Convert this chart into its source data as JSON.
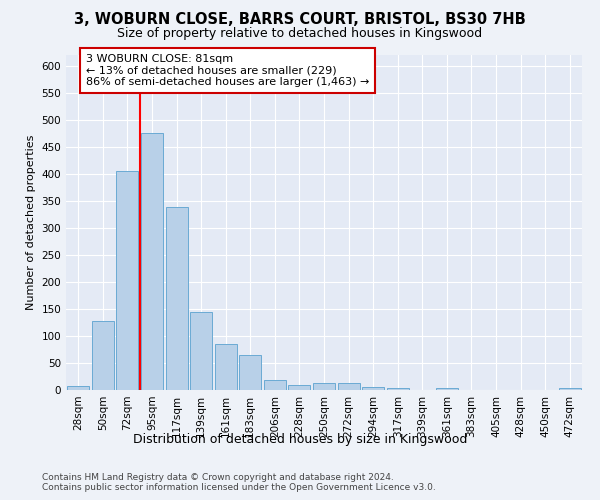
{
  "title1": "3, WOBURN CLOSE, BARRS COURT, BRISTOL, BS30 7HB",
  "title2": "Size of property relative to detached houses in Kingswood",
  "xlabel": "Distribution of detached houses by size in Kingswood",
  "ylabel": "Number of detached properties",
  "footer": "Contains HM Land Registry data © Crown copyright and database right 2024.\nContains public sector information licensed under the Open Government Licence v3.0.",
  "bin_labels": [
    "28sqm",
    "50sqm",
    "72sqm",
    "95sqm",
    "117sqm",
    "139sqm",
    "161sqm",
    "183sqm",
    "206sqm",
    "228sqm",
    "250sqm",
    "272sqm",
    "294sqm",
    "317sqm",
    "339sqm",
    "361sqm",
    "383sqm",
    "405sqm",
    "428sqm",
    "450sqm",
    "472sqm"
  ],
  "bar_values": [
    8,
    127,
    405,
    475,
    338,
    145,
    85,
    65,
    18,
    10,
    13,
    13,
    6,
    3,
    0,
    3,
    0,
    0,
    0,
    0,
    3
  ],
  "bar_color": "#b8d0e8",
  "bar_edge_color": "#6aaad4",
  "red_line_x": 2.5,
  "annotation_text": "3 WOBURN CLOSE: 81sqm\n← 13% of detached houses are smaller (229)\n86% of semi-detached houses are larger (1,463) →",
  "annotation_box_color": "white",
  "annotation_box_edge": "#cc0000",
  "ylim": [
    0,
    620
  ],
  "yticks": [
    0,
    50,
    100,
    150,
    200,
    250,
    300,
    350,
    400,
    450,
    500,
    550,
    600
  ],
  "bg_color": "#eef2f8",
  "plot_bg_color": "#e4eaf5",
  "title1_fontsize": 10.5,
  "title2_fontsize": 9,
  "ylabel_fontsize": 8,
  "xlabel_fontsize": 9,
  "tick_fontsize": 7.5,
  "footer_fontsize": 6.5,
  "annot_fontsize": 8
}
